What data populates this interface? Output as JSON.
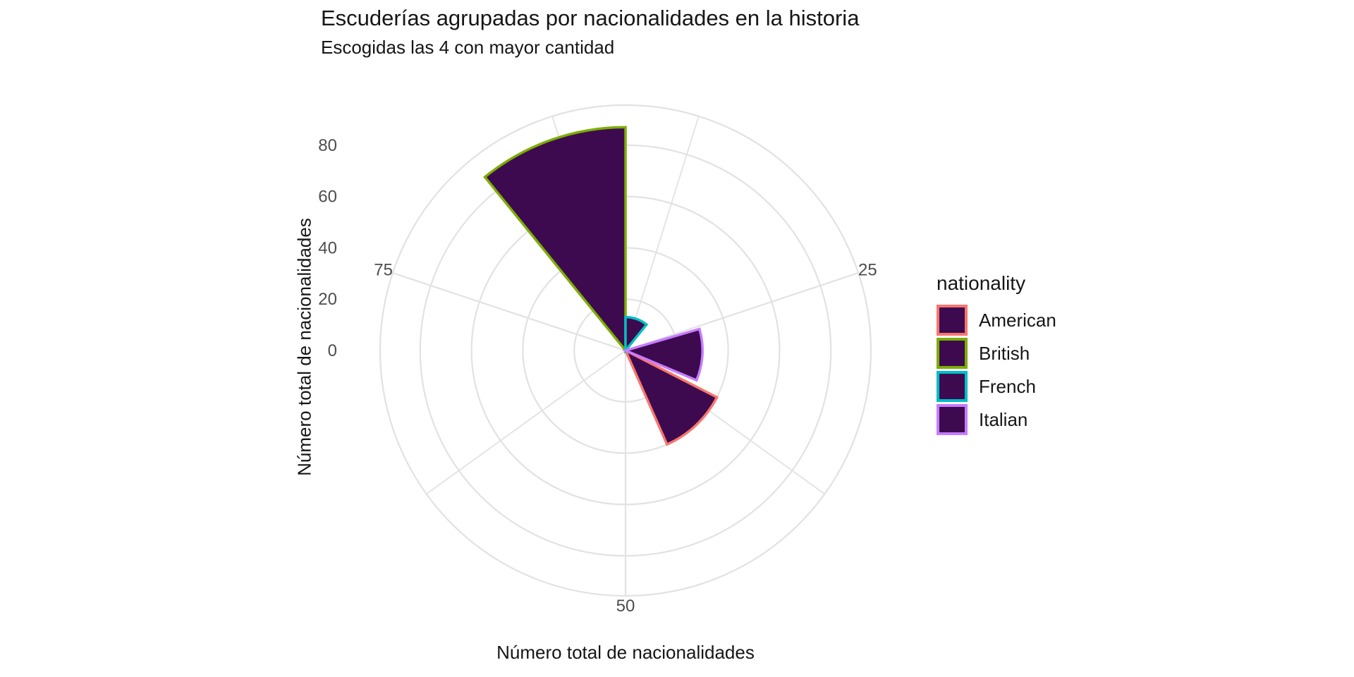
{
  "chart_data": {
    "type": "bar",
    "subtype": "polar-coxcomb",
    "title": "Escuderías agrupadas por nacionalidades en la historia",
    "subtitle": "Escogidas las 4 con mayor cantidad",
    "xlabel": "Número total de nacionalidades",
    "ylabel": "Número total de nacionalidades",
    "categories": [
      "American",
      "British",
      "French",
      "Italian"
    ],
    "values": [
      40,
      87,
      13,
      30
    ],
    "series": [
      {
        "name": "American",
        "value": 40,
        "outline_color": "#F8766D"
      },
      {
        "name": "British",
        "value": 87,
        "outline_color": "#7CAE00"
      },
      {
        "name": "French",
        "value": 13,
        "outline_color": "#00BFC4"
      },
      {
        "name": "Italian",
        "value": 30,
        "outline_color": "#C77CFF"
      }
    ],
    "bar_fill_color": "#3D0A50",
    "bar_width_units": 9,
    "theta_domain": [
      8.5,
      91.5
    ],
    "theta_major_ticks": [
      25,
      50,
      75
    ],
    "theta_minor_ticks": [
      12.5,
      37.5,
      62.5,
      87.5
    ],
    "r_tick_labels": [
      0,
      20,
      40,
      60,
      80
    ],
    "r_outer_units": 95.6,
    "grid_on": true,
    "grid_color": "#E2E2E2",
    "tick_text_color": "#4D4D4D",
    "legend": {
      "title": "nationality",
      "position": "right",
      "entries": [
        "American",
        "British",
        "French",
        "Italian"
      ]
    }
  }
}
